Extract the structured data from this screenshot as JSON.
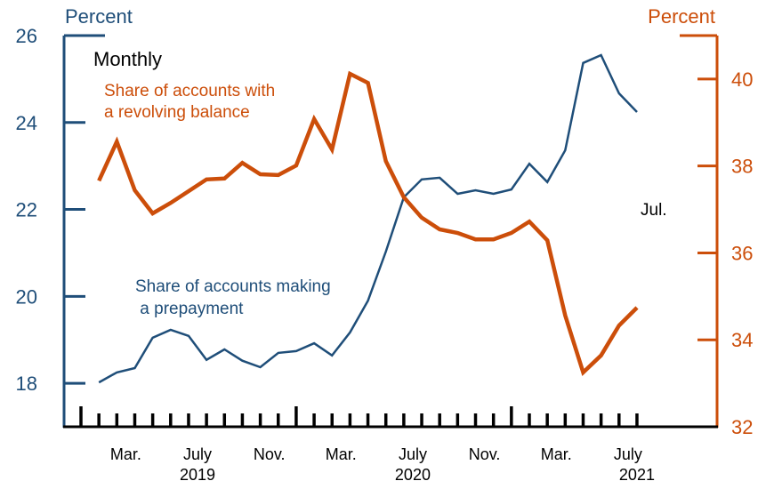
{
  "chart_data": {
    "type": "line",
    "frequency_note": "Monthly",
    "last_obs_note": "Jul.",
    "left_axis": {
      "unit_label": "Percent",
      "ylim": [
        17,
        26
      ],
      "ticks": [
        18,
        20,
        22,
        24,
        26
      ],
      "color": "#1f4e79"
    },
    "right_axis": {
      "unit_label": "Percent",
      "ylim": [
        32,
        41
      ],
      "ticks": [
        32,
        34,
        36,
        38,
        40
      ],
      "color": "#cc4e0a"
    },
    "x_axis": {
      "start": "2019-01",
      "end": "2021-07",
      "month_labels": [
        {
          "label": "Mar.",
          "month_index": 2
        },
        {
          "label": "July",
          "month_index": 6
        },
        {
          "label": "Nov.",
          "month_index": 10
        },
        {
          "label": "Mar.",
          "month_index": 14
        },
        {
          "label": "July",
          "month_index": 18
        },
        {
          "label": "Nov.",
          "month_index": 22
        },
        {
          "label": "Mar.",
          "month_index": 26
        },
        {
          "label": "July",
          "month_index": 30
        }
      ],
      "year_labels": [
        {
          "label": "2019",
          "month_index": 6
        },
        {
          "label": "2020",
          "month_index": 18
        },
        {
          "label": "2021",
          "month_index": 30.5
        }
      ],
      "tick_count": 32,
      "year_tick_indices": [
        0,
        12,
        24
      ]
    },
    "x": [
      "2019-01",
      "2019-02",
      "2019-03",
      "2019-04",
      "2019-05",
      "2019-06",
      "2019-07",
      "2019-08",
      "2019-09",
      "2019-10",
      "2019-11",
      "2019-12",
      "2020-01",
      "2020-02",
      "2020-03",
      "2020-04",
      "2020-05",
      "2020-06",
      "2020-07",
      "2020-08",
      "2020-09",
      "2020-10",
      "2020-11",
      "2020-12",
      "2021-01",
      "2021-02",
      "2021-03",
      "2021-04",
      "2021-05",
      "2021-06",
      "2021-07"
    ],
    "series": [
      {
        "name": "Share of accounts making a prepayment",
        "label_lines": [
          "Share of accounts making",
          " a prepayment"
        ],
        "axis": "left",
        "color": "#1f4e79",
        "values": [
          18.02,
          18.25,
          18.35,
          19.05,
          19.23,
          19.09,
          18.54,
          18.78,
          18.52,
          18.37,
          18.7,
          18.74,
          18.92,
          18.64,
          19.17,
          19.9,
          21.03,
          22.28,
          22.69,
          22.73,
          22.36,
          22.44,
          22.36,
          22.46,
          23.05,
          22.63,
          23.36,
          25.37,
          25.55,
          24.67,
          24.24
        ]
      },
      {
        "name": "Share of accounts with a revolving balance",
        "label_lines": [
          "Share of accounts with",
          "a revolving balance"
        ],
        "axis": "right",
        "color": "#cc4e0a",
        "values": [
          37.66,
          38.56,
          37.44,
          36.91,
          37.15,
          37.42,
          37.69,
          37.71,
          38.07,
          37.81,
          37.79,
          38.01,
          39.08,
          38.38,
          40.12,
          39.91,
          38.11,
          37.28,
          36.81,
          36.54,
          36.46,
          36.31,
          36.31,
          36.46,
          36.72,
          36.29,
          34.56,
          33.25,
          33.64,
          34.33,
          34.74
        ]
      }
    ],
    "grid": false,
    "title": "",
    "xlabel": "",
    "ylabel": "Percent"
  }
}
